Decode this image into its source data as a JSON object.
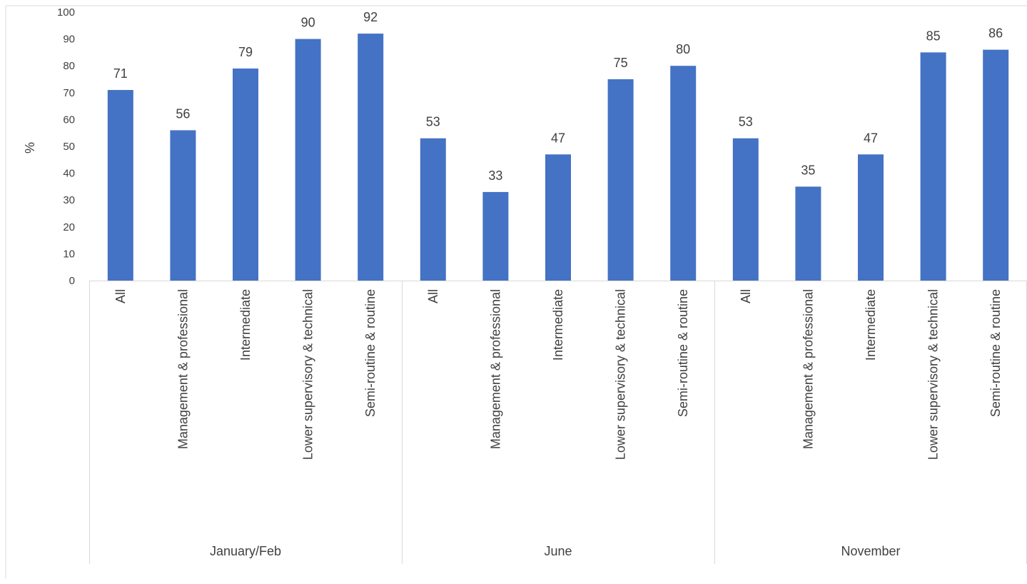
{
  "chart_data": {
    "type": "bar",
    "groups": [
      {
        "name": "January/Feb",
        "categories": [
          "All",
          "Management & professional",
          "Intermediate",
          "Lower supervisory & technical",
          "Semi-routine & routine"
        ],
        "values": [
          71,
          56,
          79,
          90,
          92
        ]
      },
      {
        "name": "June",
        "categories": [
          "All",
          "Management & professional",
          "Intermediate",
          "Lower supervisory & technical",
          "Semi-routine & routine"
        ],
        "values": [
          53,
          33,
          47,
          75,
          80
        ]
      },
      {
        "name": "November",
        "categories": [
          "All",
          "Management & professional",
          "Intermediate",
          "Lower supervisory & technical",
          "Semi-routine & routine"
        ],
        "values": [
          53,
          35,
          47,
          85,
          86
        ]
      }
    ],
    "ylabel": "%",
    "ylim": [
      0,
      100
    ],
    "yticks": [
      0,
      10,
      20,
      30,
      40,
      50,
      60,
      70,
      80,
      90,
      100
    ],
    "data_labels": true,
    "grid": false,
    "colors": {
      "bar": "#4472C4",
      "axis": "#d9d9d9",
      "text": "#404040"
    }
  }
}
